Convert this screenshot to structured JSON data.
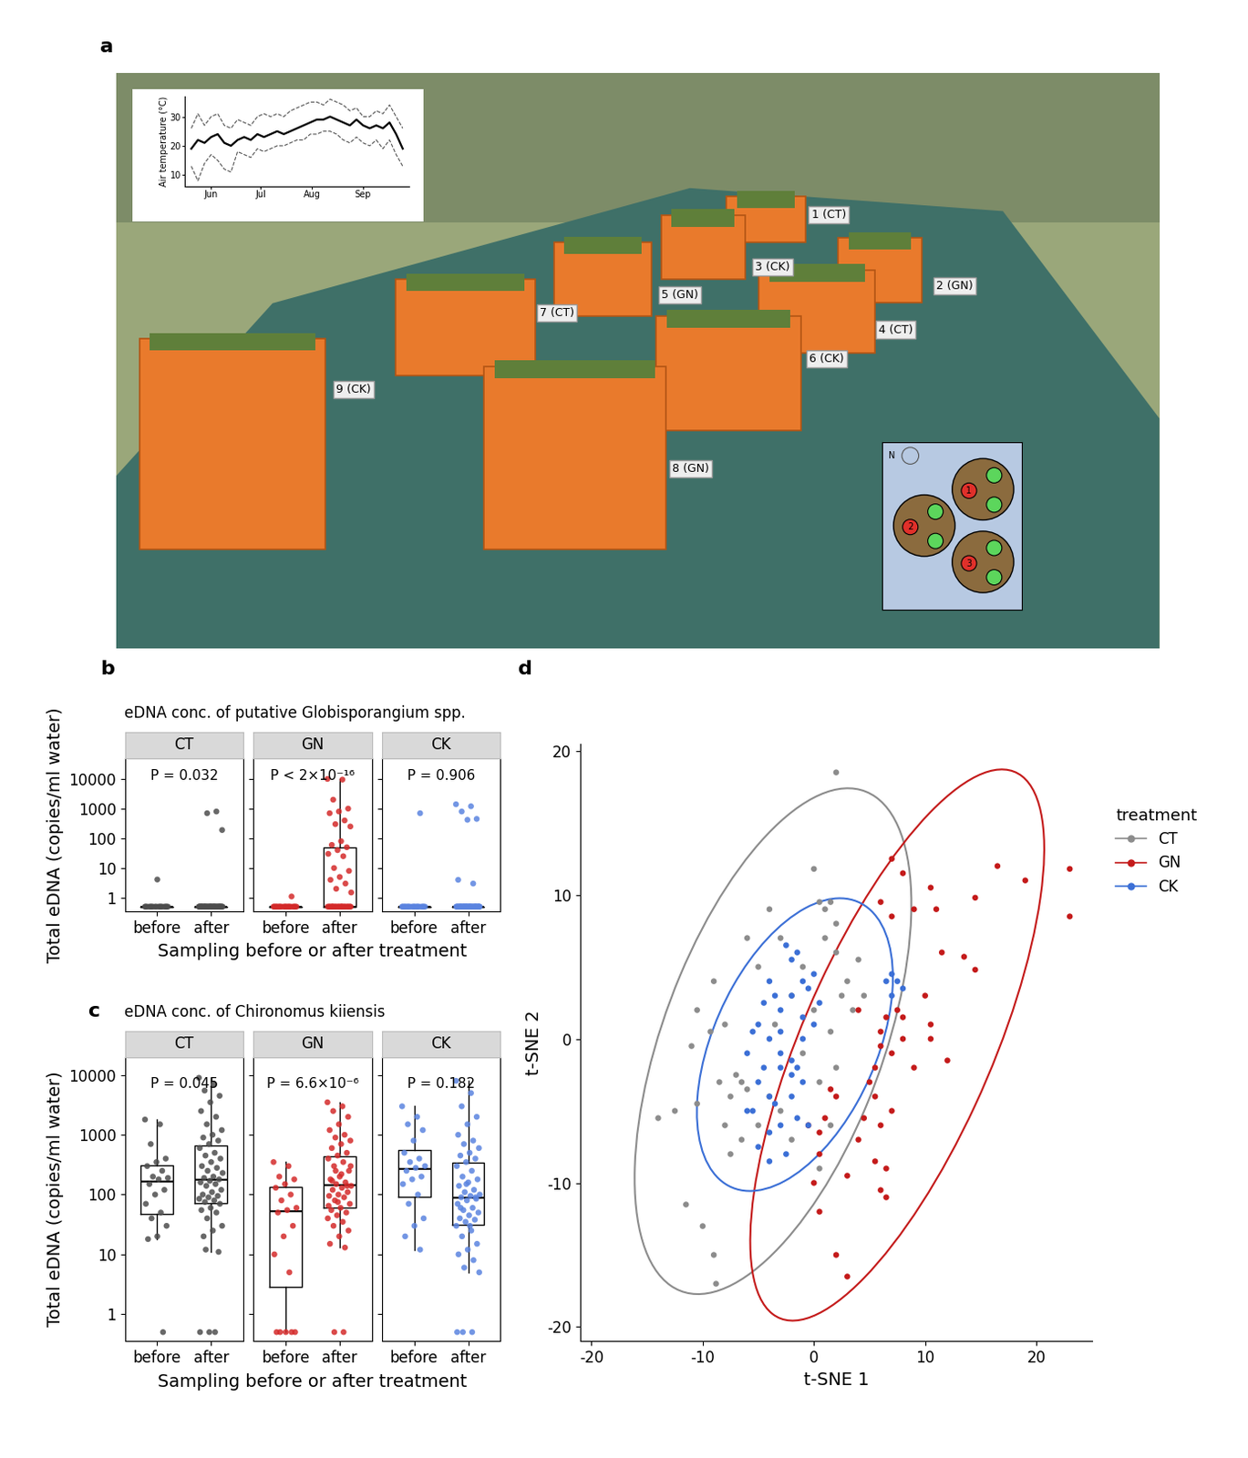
{
  "panel_labels": [
    "a",
    "b",
    "c",
    "d"
  ],
  "photo": {
    "box_labels": [
      "1 (CT)",
      "2 (GN)",
      "3 (CK)",
      "4 (CT)",
      "5 (GN)",
      "6 (CK)",
      "7 (CT)",
      "8 (GN)",
      "9 (CK)"
    ],
    "pot_labels": [
      "1",
      "2",
      "3"
    ],
    "compass_label": "N"
  },
  "chart_data": [
    {
      "type": "line",
      "y_label": "Air temperature (°C)",
      "x": [
        -12,
        -8,
        -4,
        0,
        4,
        8,
        12,
        16,
        20,
        24,
        28,
        32,
        36,
        40,
        44,
        48,
        52,
        56,
        60,
        64,
        68,
        72,
        76,
        80,
        84,
        88,
        92,
        96,
        100,
        104,
        108,
        112,
        116
      ],
      "xlim": [
        -16,
        120
      ],
      "xticks": [
        {
          "value": 0,
          "label": "Jun"
        },
        {
          "value": 30,
          "label": "Jul"
        },
        {
          "value": 61,
          "label": "Aug"
        },
        {
          "value": 92,
          "label": "Sep"
        }
      ],
      "ylim": [
        6,
        37
      ],
      "yticks": [
        10,
        20,
        30
      ],
      "series": [
        {
          "color": "#000000",
          "line_style": "solid",
          "values": [
            19,
            22,
            21,
            23,
            24,
            21,
            20,
            22,
            23,
            22,
            24,
            23,
            24,
            25,
            24,
            25,
            26,
            27,
            28,
            29,
            29,
            30,
            29,
            28,
            27,
            29,
            27,
            26,
            27,
            26,
            28,
            24,
            19
          ]
        },
        {
          "color": "#555555",
          "line_style": "dashed",
          "values": [
            26,
            31,
            27,
            30,
            31,
            27,
            26,
            29,
            28,
            27,
            30,
            31,
            30,
            31,
            30,
            32,
            33,
            34,
            35,
            35,
            34,
            36,
            35,
            34,
            32,
            33,
            30,
            30,
            32,
            31,
            34,
            30,
            26
          ]
        },
        {
          "color": "#555555",
          "line_style": "dashed",
          "values": [
            13,
            8,
            14,
            17,
            15,
            12,
            11,
            18,
            17,
            16,
            19,
            18,
            19,
            20,
            20,
            21,
            22,
            22,
            24,
            24,
            25,
            25,
            24,
            22,
            21,
            23,
            21,
            20,
            22,
            19,
            22,
            17,
            13
          ]
        }
      ]
    },
    {
      "type": "box_strip",
      "title": "eDNA conc. of putative Globisporangium spp.",
      "x_label": "Sampling before or after treatment",
      "y_label": "Total eDNA (copies/ml water)",
      "log": "y",
      "ylim": [
        0.35,
        50000
      ],
      "yticks": [
        1,
        10,
        100,
        1000,
        10000
      ],
      "categories": [
        "before",
        "after"
      ],
      "facets": [
        {
          "name": "CT",
          "color": "#4d4d4d",
          "annotation": "P = 0.032",
          "values": [
            [
              0.5,
              0.5,
              0.5,
              0.5,
              0.5,
              0.5,
              0.5,
              0.5,
              0.5,
              0.5,
              0.5,
              0.5,
              0.5,
              0.5,
              0.5,
              0.5,
              0.5,
              4.1
            ],
            [
              0.5,
              0.5,
              0.5,
              0.5,
              0.5,
              0.5,
              0.5,
              0.5,
              0.5,
              0.5,
              0.5,
              0.5,
              0.5,
              0.5,
              0.5,
              0.5,
              0.5,
              0.5,
              0.5,
              0.5,
              0.5,
              0.5,
              0.5,
              0.5,
              0.5,
              0.5,
              0.5,
              0.5,
              0.5,
              0.5,
              0.5,
              0.5,
              0.5,
              0.5,
              0.5,
              0.5,
              0.5,
              0.5,
              0.5,
              0.5,
              800,
              700,
              190
            ]
          ]
        },
        {
          "name": "GN",
          "color": "#d42a2a",
          "annotation": "P < 2×10⁻¹⁶",
          "values": [
            [
              0.5,
              0.5,
              0.5,
              0.5,
              0.5,
              0.5,
              0.5,
              0.5,
              0.5,
              0.5,
              0.5,
              0.5,
              0.5,
              0.5,
              0.5,
              0.5,
              0.5,
              0.5,
              0.5,
              1.1
            ],
            [
              10000,
              9500,
              2000,
              1000,
              800,
              700,
              400,
              300,
              250,
              80,
              60,
              50,
              40,
              30,
              25,
              10,
              8,
              5,
              4,
              3,
              2,
              1.5,
              0.5,
              0.5,
              0.5,
              0.5,
              0.5,
              0.5,
              0.5,
              0.5,
              0.5,
              0.5,
              0.5,
              0.5,
              0.5,
              0.5,
              0.5,
              0.5,
              0.5,
              0.5,
              0.5,
              0.5,
              0.5,
              0.5,
              0.5
            ]
          ]
        },
        {
          "name": "CK",
          "color": "#5b84e0",
          "annotation": "P = 0.906",
          "values": [
            [
              0.5,
              0.5,
              0.5,
              0.5,
              0.5,
              0.5,
              0.5,
              0.5,
              0.5,
              0.5,
              0.5,
              0.5,
              0.5,
              0.5,
              0.5,
              0.5,
              0.5,
              0.5,
              0.5,
              700
            ],
            [
              1400,
              1200,
              800,
              450,
              420,
              4,
              3,
              0.5,
              0.5,
              0.5,
              0.5,
              0.5,
              0.5,
              0.5,
              0.5,
              0.5,
              0.5,
              0.5,
              0.5,
              0.5,
              0.5,
              0.5,
              0.5,
              0.5,
              0.5,
              0.5,
              0.5,
              0.5,
              0.5,
              0.5,
              0.5,
              0.5,
              0.5,
              0.5,
              0.5,
              0.5,
              0.5,
              0.5,
              0.5,
              0.5,
              0.5,
              0.5,
              0.5,
              0.5,
              0.5,
              0.5,
              0.5
            ]
          ]
        }
      ]
    },
    {
      "type": "box_strip",
      "title": "eDNA conc. of Chironomus kiiensis",
      "x_label": "Sampling before or after treatment",
      "y_label": "Total eDNA (copies/ml water)",
      "log": "y",
      "ylim": [
        0.35,
        20000
      ],
      "yticks": [
        1,
        10,
        100,
        1000,
        10000
      ],
      "categories": [
        "before",
        "after"
      ],
      "facets": [
        {
          "name": "CT",
          "color": "#4d4d4d",
          "annotation": "P = 0.045",
          "values": [
            [
              1800,
              1500,
              700,
              400,
              350,
              300,
              250,
              200,
              190,
              180,
              150,
              120,
              100,
              70,
              50,
              40,
              30,
              20,
              18,
              0.5
            ],
            [
              9000,
              7000,
              5500,
              4500,
              3500,
              2500,
              2000,
              1500,
              1200,
              1000,
              900,
              800,
              700,
              600,
              500,
              450,
              400,
              350,
              300,
              280,
              250,
              230,
              200,
              190,
              180,
              170,
              160,
              150,
              140,
              120,
              110,
              100,
              95,
              90,
              85,
              80,
              75,
              70,
              60,
              55,
              50,
              40,
              30,
              25,
              20,
              11,
              0.5,
              0.5,
              0.5,
              12
            ]
          ]
        },
        {
          "name": "GN",
          "color": "#d42a2a",
          "annotation": "P = 6.6×10⁻⁶",
          "values": [
            [
              350,
              300,
              200,
              180,
              150,
              130,
              100,
              80,
              60,
              55,
              50,
              30,
              20,
              10,
              5,
              0.5,
              0.5,
              0.5,
              0.5,
              0.5
            ],
            [
              3500,
              3000,
              2500,
              2000,
              1500,
              1200,
              1000,
              900,
              800,
              700,
              600,
              500,
              450,
              400,
              350,
              300,
              250,
              200,
              180,
              160,
              150,
              140,
              130,
              120,
              110,
              100,
              95,
              90,
              80,
              70,
              60,
              55,
              50,
              45,
              40,
              35,
              30,
              25,
              20,
              15,
              13,
              250,
              300,
              220,
              170,
              140,
              75,
              65,
              0.5,
              0.5
            ]
          ]
        },
        {
          "name": "CK",
          "color": "#5b84e0",
          "annotation": "P = 0.182",
          "values": [
            [
              3000,
              2000,
              1500,
              1200,
              800,
              500,
              400,
              350,
              300,
              280,
              250,
              200,
              180,
              150,
              100,
              70,
              40,
              30,
              20,
              12
            ],
            [
              8000,
              5000,
              3000,
              2000,
              1500,
              1000,
              800,
              700,
              600,
              500,
              450,
              400,
              350,
              300,
              250,
              200,
              180,
              160,
              140,
              120,
              110,
              100,
              95,
              90,
              85,
              80,
              70,
              60,
              55,
              50,
              45,
              40,
              38,
              35,
              30,
              25,
              20,
              15,
              12,
              10,
              8,
              6,
              5,
              30,
              60,
              90,
              150,
              0.5,
              0.5,
              0.5
            ]
          ]
        }
      ]
    },
    {
      "type": "scatter",
      "x_label": "t-SNE 1",
      "y_label": "t-SNE 2",
      "xlim": [
        -21,
        25
      ],
      "ylim": [
        -21,
        20.5
      ],
      "xticks": [
        -20,
        -10,
        0,
        10,
        20
      ],
      "yticks": [
        -20,
        -10,
        0,
        10,
        20
      ],
      "legend": "right",
      "legend_title": "treatment",
      "series": [
        {
          "name": "CT",
          "color": "#8c8c8c",
          "x": [
            -14,
            -12.5,
            -11.5,
            -10,
            -9,
            -8.8,
            -10.5,
            -11,
            -10.5,
            -9,
            -9.3,
            -8,
            -8.5,
            -8,
            -7.5,
            -7,
            -6.5,
            -6,
            -6.5,
            -7.5,
            -5,
            -4,
            -3,
            -2,
            -3.5,
            -2,
            -1,
            0,
            0.5,
            1,
            1.5,
            2,
            0,
            1,
            2,
            2.5,
            2,
            1.5,
            0.5,
            3,
            4,
            4.5,
            3.5,
            2,
            -1,
            0.5,
            -5,
            -3,
            1.5,
            -6,
            -4
          ],
          "y": [
            -5.5,
            -5,
            -11.5,
            -13,
            -15,
            -17,
            -4.5,
            -0.5,
            2,
            4,
            0.5,
            1,
            -3,
            -6,
            -4,
            -2.5,
            -3,
            -3.5,
            -7,
            -8,
            -6,
            -4,
            -5,
            -7,
            1,
            3,
            5,
            2,
            9.5,
            9,
            9.5,
            8,
            11.8,
            7,
            6,
            3,
            -2,
            -6,
            -9,
            4,
            5.5,
            3,
            2,
            18.5,
            -1,
            -3,
            5,
            7,
            0.5,
            7,
            9
          ]
        },
        {
          "name": "GN",
          "color": "#c41a1a",
          "x": [
            7,
            8,
            10.5,
            11,
            9,
            14.5,
            16.5,
            19,
            23,
            23,
            13.5,
            14.5,
            10.5,
            10.5,
            6,
            7,
            7.5,
            8,
            6.5,
            6,
            6,
            5.5,
            5.5,
            6,
            5.5,
            6,
            6.5,
            4.5,
            4,
            3,
            2,
            3,
            0.5,
            0,
            -0.5,
            0.5,
            1,
            2,
            1.5,
            5,
            7,
            8,
            9,
            10,
            11.5,
            4,
            0.5,
            6.5,
            7,
            12
          ],
          "y": [
            12.5,
            11.5,
            10.5,
            9,
            9,
            9.8,
            12,
            11,
            11.8,
            8.5,
            5.7,
            4.8,
            1,
            0,
            9.5,
            8.5,
            2,
            1.5,
            1.5,
            0.5,
            -0.5,
            -2,
            -4,
            -6,
            -8.5,
            -10.5,
            -11,
            -5.5,
            -7,
            -9.5,
            -15,
            -16.5,
            -12,
            -10,
            -6,
            -8,
            -5.5,
            -4,
            -3.5,
            -3,
            -1,
            0,
            -2,
            3,
            6,
            2,
            -6.5,
            -9,
            -5,
            -1.5
          ]
        },
        {
          "name": "CK",
          "color": "#3b6fd6",
          "x": [
            -4,
            -5,
            -3,
            -2,
            -1,
            -2,
            -1.5,
            -3,
            -4.5,
            -4,
            -3,
            -2.5,
            -4,
            -5,
            -4,
            -2,
            -1.5,
            -1,
            0,
            -0.5,
            0,
            -3.5,
            -5.5,
            -6,
            -5,
            -2,
            -1,
            -1.5,
            -3,
            -4.5,
            -2.5,
            -0.5,
            0.5,
            -3.5,
            -1,
            7,
            7.5,
            8,
            7,
            6.5,
            -2,
            -4,
            -6,
            -5.5,
            -3
          ],
          "y": [
            0,
            1,
            2,
            3,
            4,
            5.5,
            6,
            -1,
            -2,
            -4,
            -6,
            -8,
            -8.5,
            -7.5,
            -6.5,
            -4,
            -2,
            0,
            1,
            3.5,
            4.5,
            3,
            0.5,
            -1,
            -3,
            -1.5,
            -3,
            -5.5,
            -2,
            2.5,
            6.5,
            -6,
            2.5,
            -4.5,
            1.5,
            4.5,
            4,
            3.5,
            3,
            4,
            -2.5,
            4,
            -5,
            -5,
            0.5
          ]
        }
      ]
    }
  ]
}
